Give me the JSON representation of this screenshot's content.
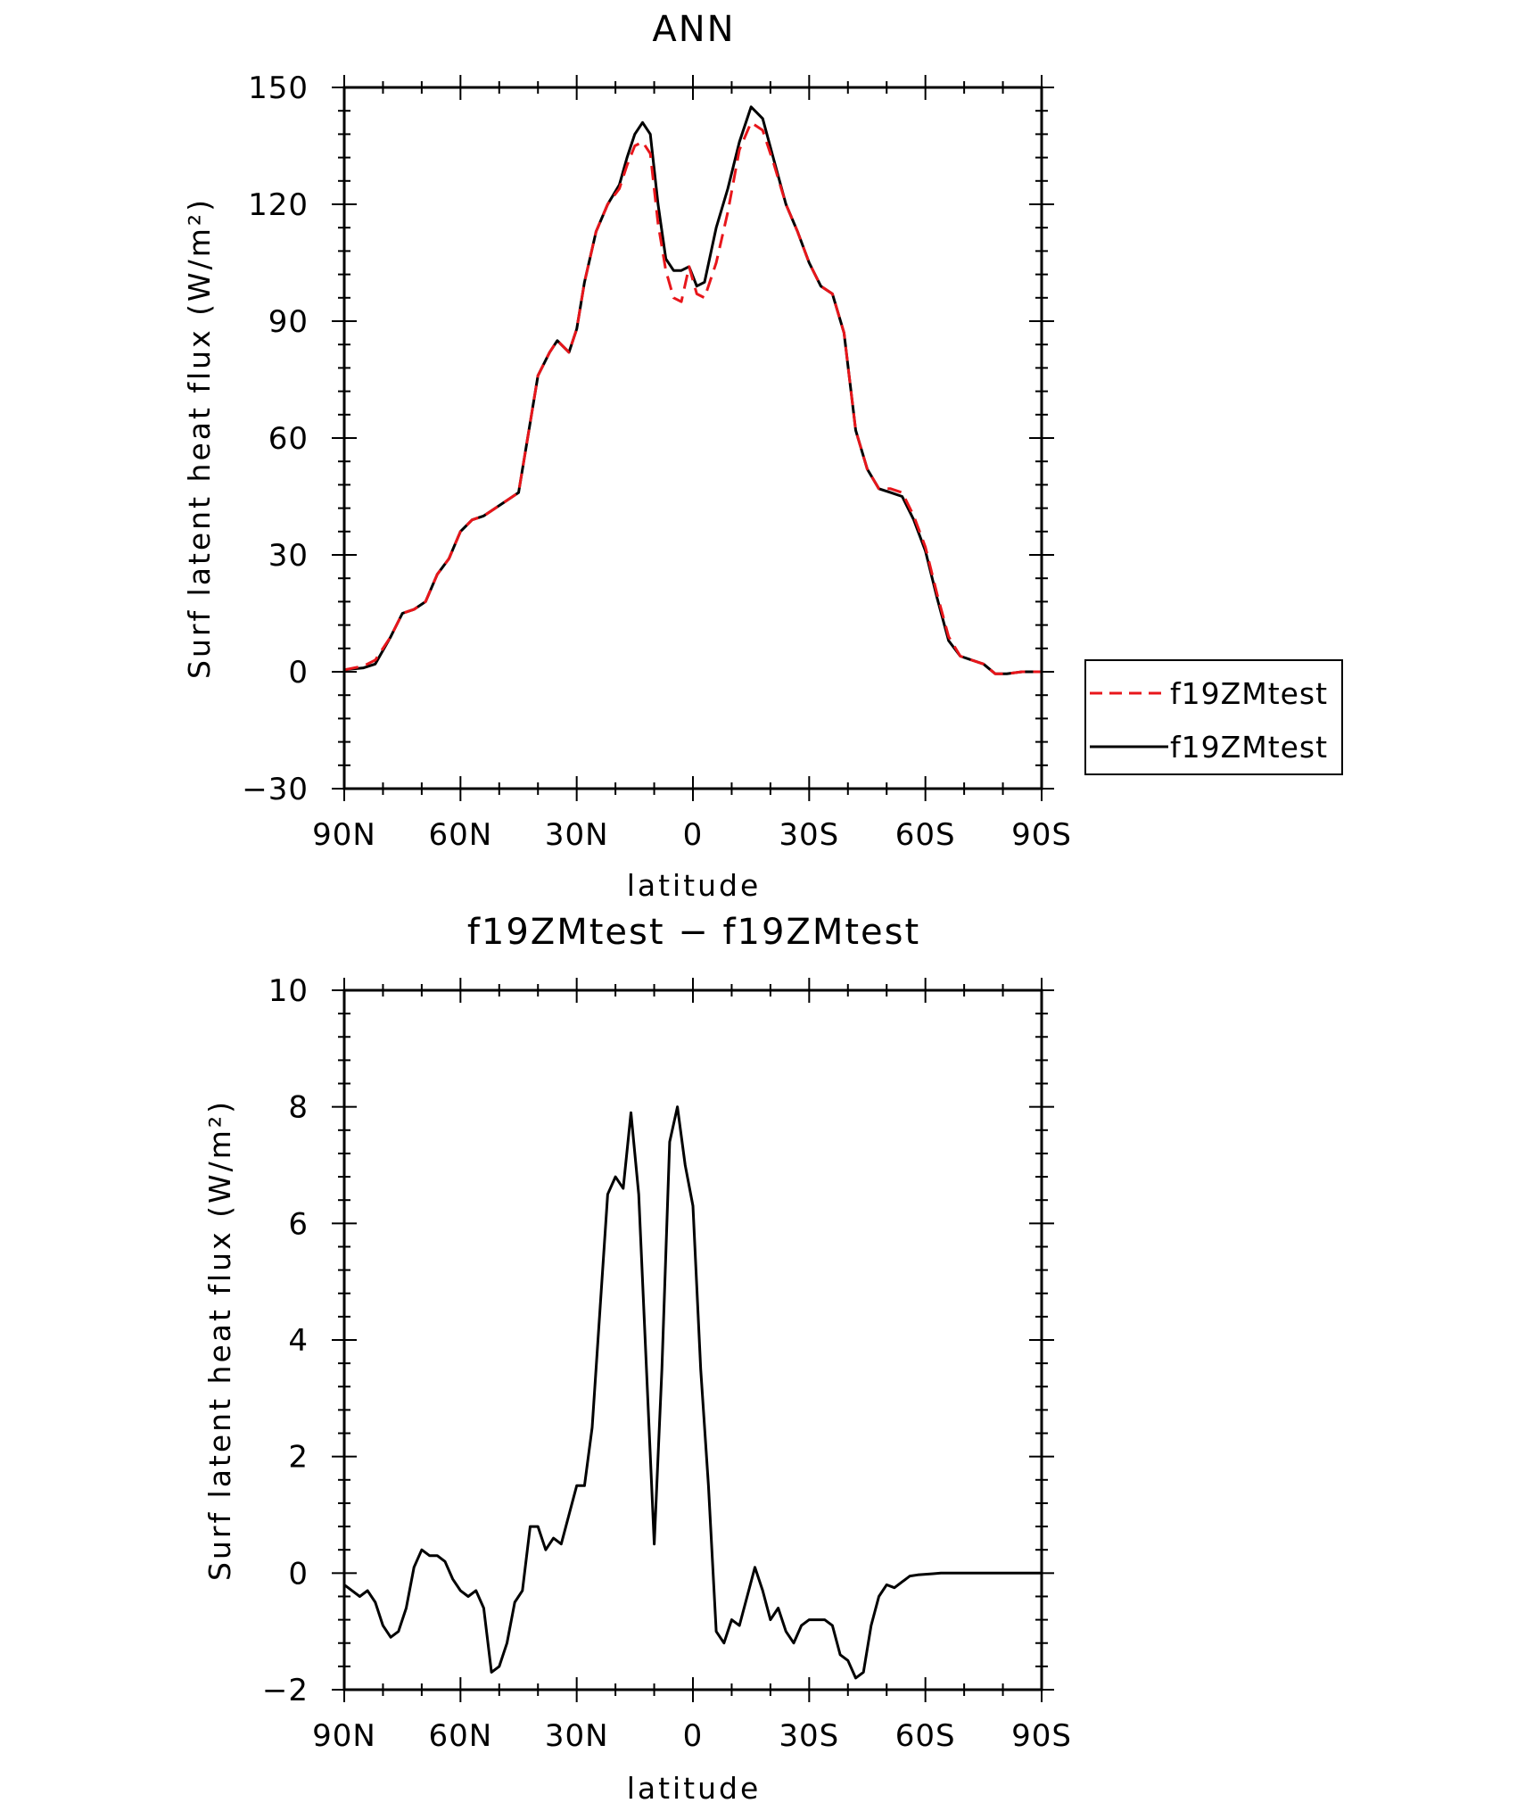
{
  "chart_data": [
    {
      "type": "line",
      "title": "ANN",
      "xlabel": "latitude",
      "ylabel": "Surf latent heat flux (W/m²)",
      "xlim": [
        90,
        -90
      ],
      "ylim": [
        -30,
        150
      ],
      "xticks": [
        90,
        60,
        30,
        0,
        -30,
        -60,
        -90
      ],
      "xtick_labels": [
        "90N",
        "60N",
        "30N",
        "0",
        "30S",
        "60S",
        "90S"
      ],
      "yticks": [
        -30,
        0,
        30,
        60,
        90,
        120,
        150
      ],
      "ytick_labels": [
        "−30",
        "0",
        "30",
        "60",
        "90",
        "120",
        "150"
      ],
      "grid": false,
      "legend": "right",
      "series": [
        {
          "name": "f19ZMtest",
          "color": "#e8161b",
          "dash": "dashed",
          "x": [
            90,
            85,
            82,
            78,
            75,
            72,
            69,
            66,
            63,
            60,
            57,
            54,
            51,
            48,
            45,
            43,
            40,
            37,
            35,
            32,
            30,
            28,
            25,
            22,
            19,
            17,
            15,
            13,
            11,
            9,
            7,
            5,
            3,
            1,
            -1,
            -3,
            -6,
            -9,
            -12,
            -15,
            -18,
            -21,
            -24,
            -27,
            -30,
            -33,
            -36,
            -39,
            -42,
            -45,
            -48,
            -51,
            -54,
            -57,
            -60,
            -63,
            -66,
            -69,
            -72,
            -75,
            -78,
            -81,
            -85,
            -90
          ],
          "y": [
            0.5,
            1.5,
            3,
            9,
            15,
            16,
            18,
            25,
            29,
            36,
            39,
            40,
            42,
            44,
            46,
            58,
            76,
            82,
            85,
            82,
            88,
            100,
            113,
            120,
            124,
            130,
            135,
            136,
            133,
            115,
            103,
            96,
            95,
            104,
            97,
            96,
            105,
            118,
            134,
            141,
            139,
            130,
            120,
            113,
            105,
            99,
            97,
            87,
            62,
            52,
            47,
            47,
            46,
            40,
            32,
            20,
            9,
            4,
            3,
            2,
            -0.5,
            -0.5,
            0,
            0
          ]
        },
        {
          "name": "f19ZMtest",
          "color": "#000000",
          "dash": "solid",
          "x": [
            90,
            85,
            82,
            78,
            75,
            72,
            69,
            66,
            63,
            60,
            57,
            54,
            51,
            48,
            45,
            43,
            40,
            37,
            35,
            32,
            30,
            28,
            25,
            22,
            19,
            17,
            15,
            13,
            11,
            9,
            7,
            5,
            3,
            1,
            -1,
            -3,
            -6,
            -9,
            -12,
            -15,
            -18,
            -21,
            -24,
            -27,
            -30,
            -33,
            -36,
            -39,
            -42,
            -45,
            -48,
            -51,
            -54,
            -57,
            -60,
            -63,
            -66,
            -69,
            -72,
            -75,
            -78,
            -81,
            -85,
            -90
          ],
          "y": [
            0.5,
            1,
            2,
            9,
            15,
            16,
            18,
            25,
            29,
            36,
            39,
            40,
            42,
            44,
            46,
            58,
            76,
            82,
            85,
            82,
            88,
            100,
            113,
            120,
            125,
            132,
            138,
            141,
            138,
            120,
            106,
            103,
            103,
            104,
            99,
            100,
            114,
            124,
            136,
            145,
            142,
            131,
            120,
            113,
            105,
            99,
            97,
            87,
            62,
            52,
            47,
            46,
            45,
            39,
            31,
            19,
            8,
            4,
            3,
            2,
            -0.5,
            -0.5,
            0,
            0
          ]
        }
      ]
    },
    {
      "type": "line",
      "title": "f19ZMtest − f19ZMtest",
      "xlabel": "latitude",
      "ylabel": "Surf latent heat flux (W/m²)",
      "xlim": [
        90,
        -90
      ],
      "ylim": [
        -2,
        10
      ],
      "xticks": [
        90,
        60,
        30,
        0,
        -30,
        -60,
        -90
      ],
      "xtick_labels": [
        "90N",
        "60N",
        "30N",
        "0",
        "30S",
        "60S",
        "90S"
      ],
      "yticks": [
        -2,
        0,
        2,
        4,
        6,
        8,
        10
      ],
      "ytick_labels": [
        "−2",
        "0",
        "2",
        "4",
        "6",
        "8",
        "10"
      ],
      "grid": false,
      "series": [
        {
          "color": "#000000",
          "dash": "solid",
          "x": [
            90,
            88,
            86,
            84,
            82,
            80,
            78,
            76,
            74,
            72,
            70,
            68,
            66,
            64,
            62,
            60,
            58,
            56,
            54,
            52,
            50,
            48,
            46,
            44,
            42,
            40,
            38,
            36,
            34,
            32,
            30,
            28,
            26,
            24,
            22,
            20,
            18,
            16,
            14,
            12,
            10,
            8,
            6,
            4,
            2,
            0,
            -2,
            -4,
            -6,
            -8,
            -10,
            -12,
            -14,
            -16,
            -18,
            -20,
            -22,
            -24,
            -26,
            -28,
            -30,
            -32,
            -34,
            -36,
            -38,
            -40,
            -42,
            -44,
            -46,
            -48,
            -50,
            -52,
            -54,
            -56,
            -58,
            -60,
            -62,
            -64,
            -66,
            -68,
            -70,
            -72,
            -74,
            -76,
            -78,
            -80,
            -84,
            -90
          ],
          "y": [
            -0.2,
            -0.3,
            -0.4,
            -0.3,
            -0.5,
            -0.9,
            -1.1,
            -1.0,
            -0.6,
            0.1,
            0.4,
            0.3,
            0.3,
            0.2,
            -0.1,
            -0.3,
            -0.4,
            -0.3,
            -0.6,
            -1.7,
            -1.6,
            -1.2,
            -0.5,
            -0.3,
            0.8,
            0.8,
            0.4,
            0.6,
            0.5,
            1.0,
            1.5,
            1.5,
            2.5,
            4.5,
            6.5,
            6.8,
            6.6,
            7.9,
            6.5,
            3.5,
            0.5,
            3.5,
            7.4,
            8.0,
            7.0,
            6.3,
            3.5,
            1.5,
            -1.0,
            -1.2,
            -0.8,
            -0.9,
            -0.4,
            0.1,
            -0.3,
            -0.8,
            -0.6,
            -1.0,
            -1.2,
            -0.9,
            -0.8,
            -0.8,
            -0.8,
            -0.9,
            -1.4,
            -1.5,
            -1.8,
            -1.7,
            -0.9,
            -0.4,
            -0.2,
            -0.25,
            -0.15,
            -0.05,
            -0.03,
            -0.02,
            -0.01,
            0,
            0,
            0,
            0,
            0,
            0,
            0,
            0,
            0,
            0,
            0
          ]
        }
      ]
    }
  ]
}
